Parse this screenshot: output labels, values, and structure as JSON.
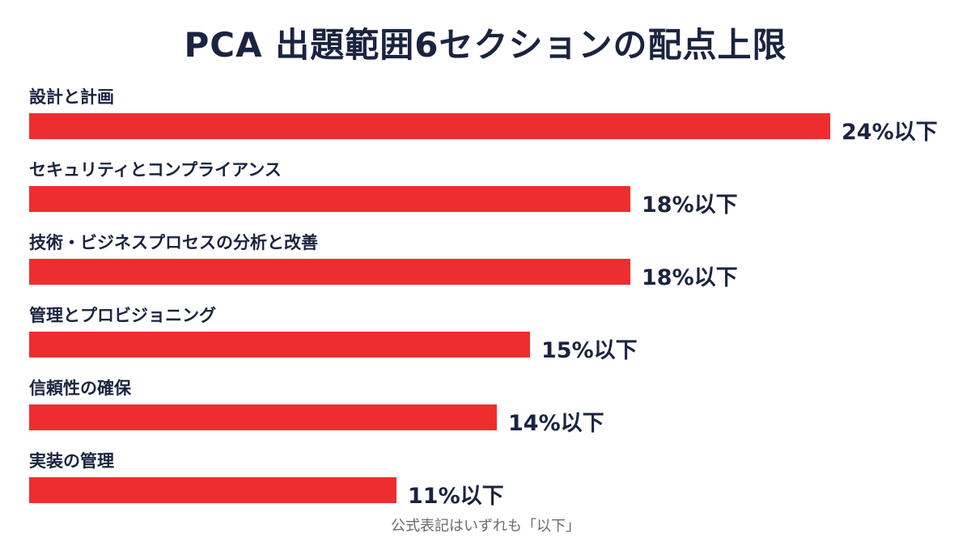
{
  "chart_data": {
    "type": "bar",
    "orientation": "horizontal",
    "title": "PCA 出題範囲6セクションの配点上限",
    "categories": [
      "設計と計画",
      "セキュリティとコンプライアンス",
      "技術・ビジネスプロセスの分析と改善",
      "管理とプロビジョニング",
      "信頼性の確保",
      "実装の管理"
    ],
    "values": [
      24,
      18,
      18,
      15,
      14,
      11
    ],
    "value_labels": [
      "24%以下",
      "18%以下",
      "18%以下",
      "15%以下",
      "14%以下",
      "11%以下"
    ],
    "unit": "%",
    "xlim": [
      0,
      24
    ],
    "grid": false,
    "bar_color": "#ee2e2e",
    "footnote": "公式表記はいずれも「以下」"
  }
}
